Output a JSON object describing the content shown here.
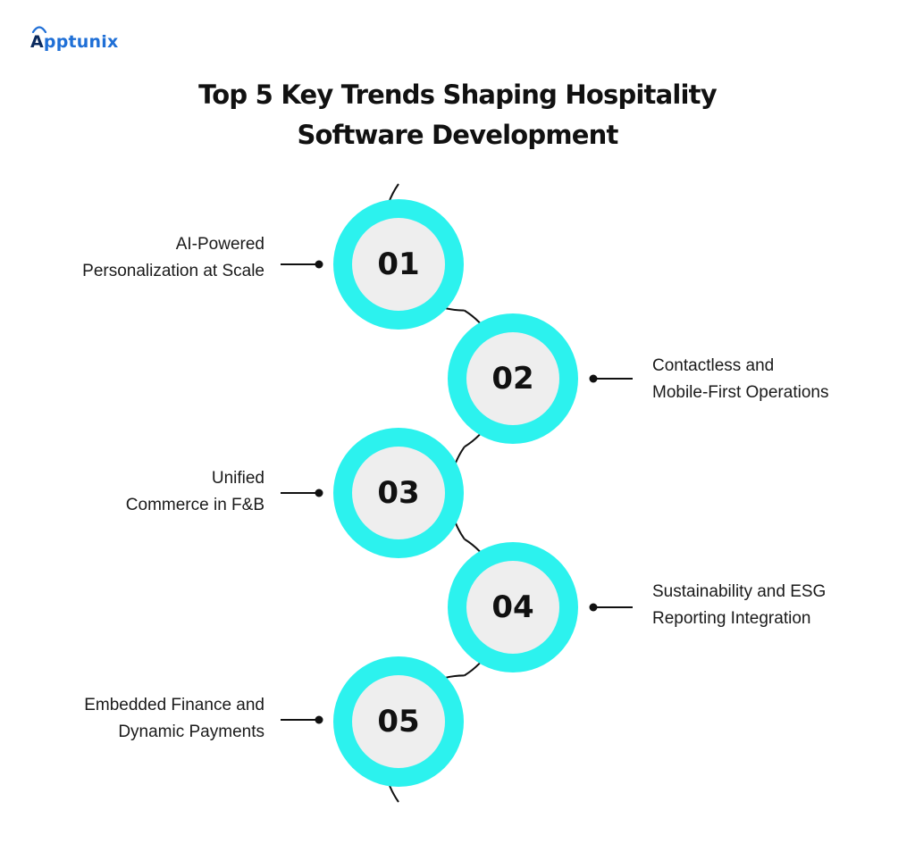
{
  "logo": {
    "text_first": "A",
    "text_rest": "pptunix"
  },
  "title": {
    "line1": "Top 5 Key Trends Shaping Hospitality",
    "line2": "Software Development"
  },
  "colors": {
    "ring": "#2cf2ee",
    "inner": "#eeeeee",
    "outline": "#111111",
    "logo_dark": "#0a2a5e",
    "logo_blue": "#1f6fd6"
  },
  "steps": [
    {
      "number": "01",
      "line1": "AI-Powered",
      "line2": "Personalization at Scale",
      "side": "left"
    },
    {
      "number": "02",
      "line1": "Contactless and",
      "line2": "Mobile-First Operations",
      "side": "right"
    },
    {
      "number": "03",
      "line1": "Unified",
      "line2": "Commerce in F&B",
      "side": "left"
    },
    {
      "number": "04",
      "line1": "Sustainability and ESG",
      "line2": "Reporting Integration",
      "side": "right"
    },
    {
      "number": "05",
      "line1": "Embedded Finance and",
      "line2": "Dynamic Payments",
      "side": "left"
    }
  ]
}
